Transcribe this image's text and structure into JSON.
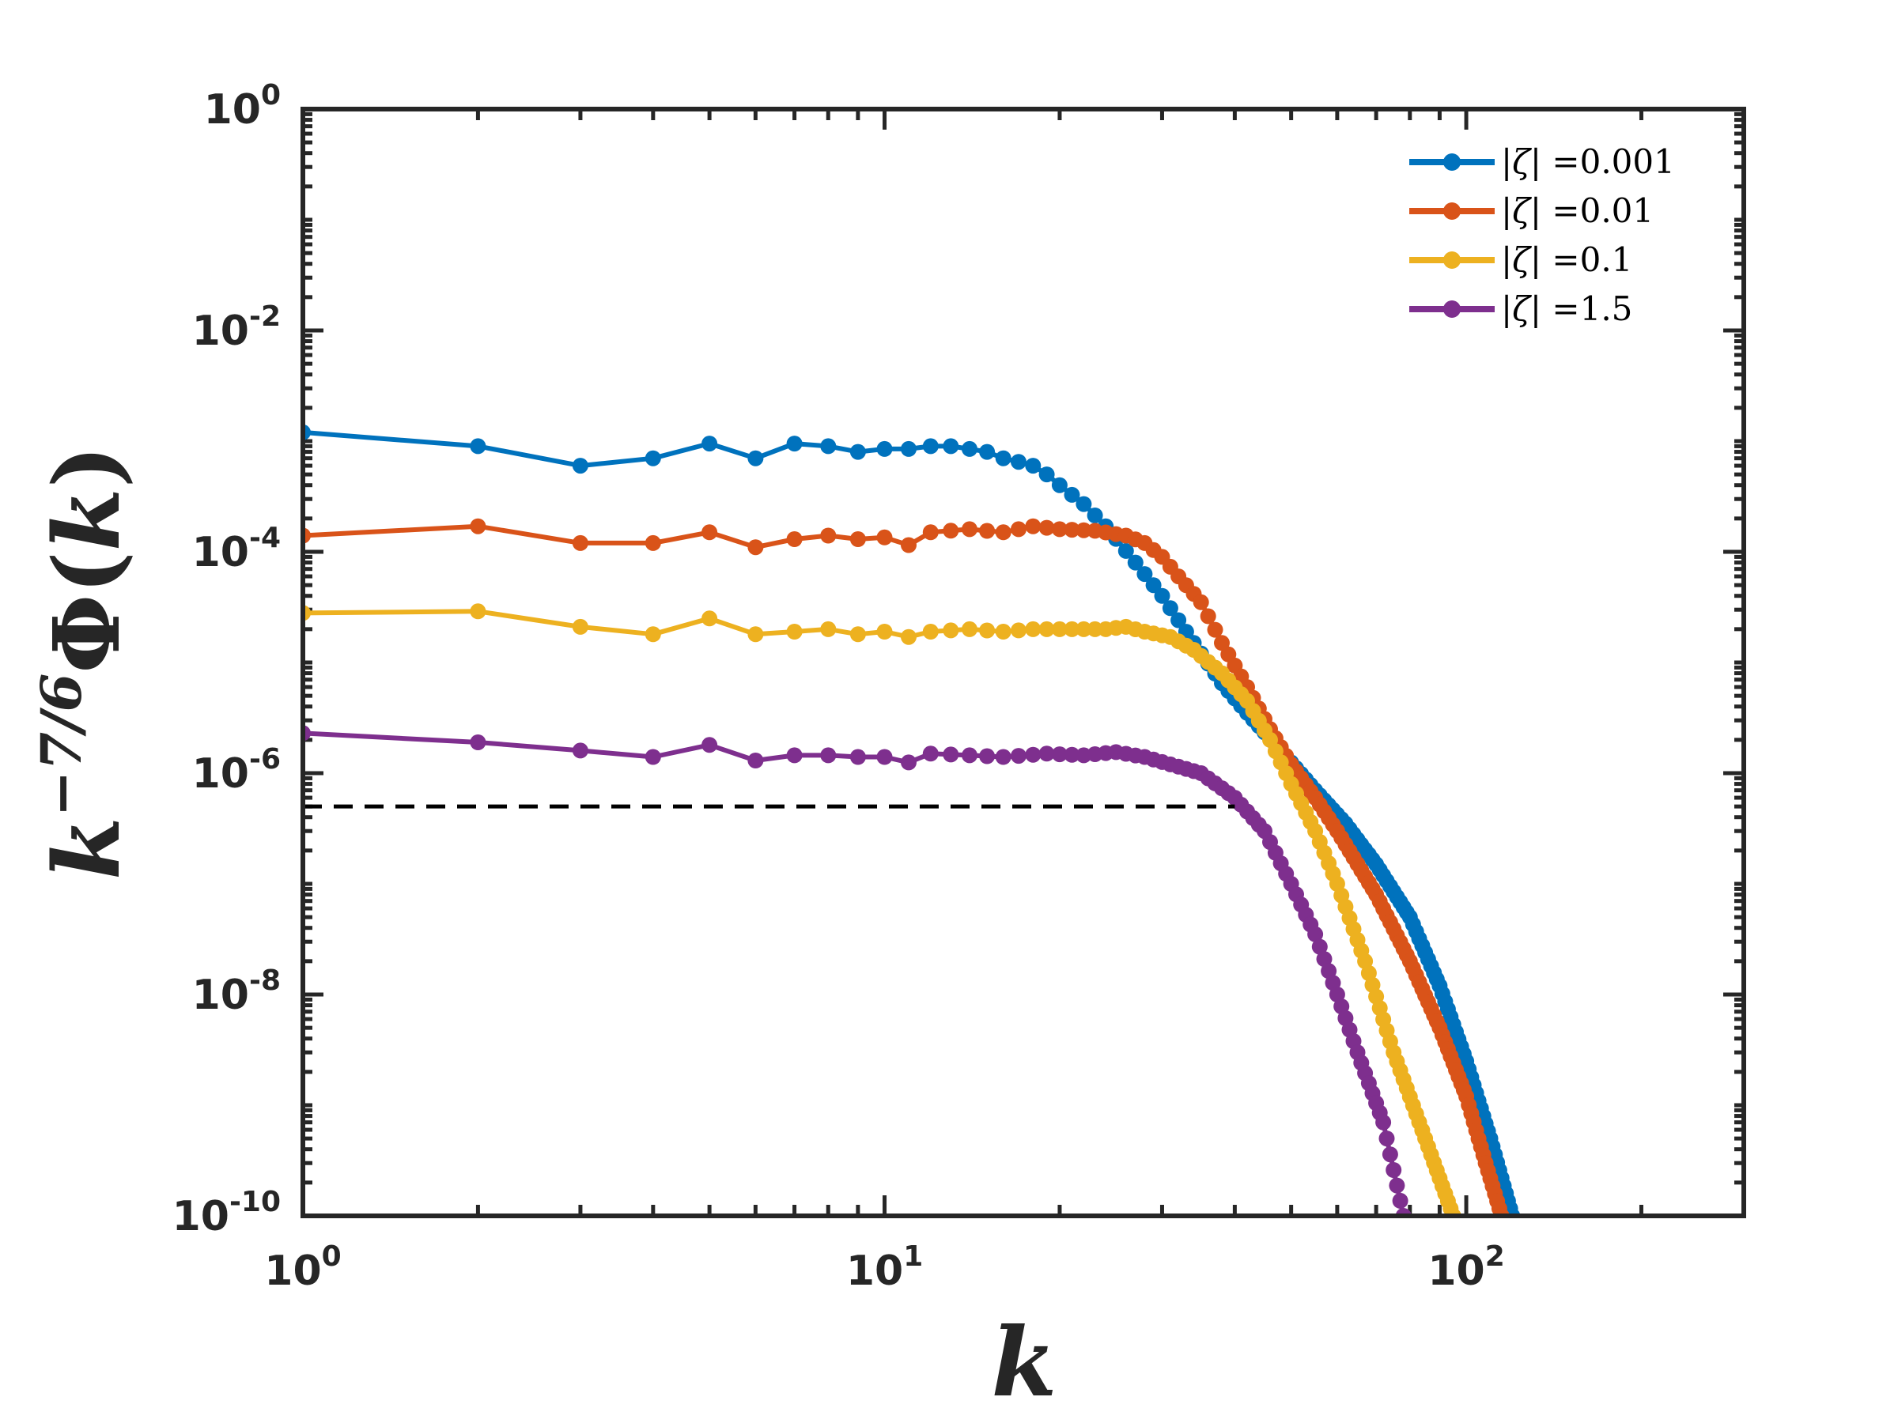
{
  "chart_data": {
    "type": "line",
    "title": "",
    "xlabel": "k",
    "ylabel": "k^{-7/6} Φ(k)",
    "ylabel_parts": {
      "base": "k",
      "exponent": "−7/6",
      "phi": "Φ",
      "paren_open": "(",
      "arg": "k",
      "paren_close": ")"
    },
    "xscale": "log",
    "yscale": "log",
    "xlim": [
      1,
      300
    ],
    "ylim": [
      1e-10,
      1
    ],
    "x_ticks": [
      {
        "value": 1,
        "base": "10",
        "exp": "0"
      },
      {
        "value": 10,
        "base": "10",
        "exp": "1"
      },
      {
        "value": 100,
        "base": "10",
        "exp": "2"
      }
    ],
    "y_ticks": [
      {
        "value": 1,
        "base": "10",
        "exp": "0"
      },
      {
        "value": 0.01,
        "base": "10",
        "exp": "-2"
      },
      {
        "value": 0.0001,
        "base": "10",
        "exp": "-4"
      },
      {
        "value": 1e-06,
        "base": "10",
        "exp": "-6"
      },
      {
        "value": 1e-08,
        "base": "10",
        "exp": "-8"
      },
      {
        "value": 1e-10,
        "base": "10",
        "exp": "-10"
      }
    ],
    "legend_position": "top-right",
    "reference_line": {
      "y": 5e-07,
      "x_range": [
        1,
        40
      ],
      "style": "dashed",
      "color": "#000000"
    },
    "series": [
      {
        "name": "|ζ| =0.001",
        "legend_symbol": "|ζ|",
        "legend_value": "=0.001",
        "color": "#0072BD",
        "anchors": [
          [
            1,
            0.0012
          ],
          [
            2,
            0.0009
          ],
          [
            3,
            0.0006
          ],
          [
            4,
            0.0007
          ],
          [
            5,
            0.00095
          ],
          [
            6,
            0.0007
          ],
          [
            7,
            0.00095
          ],
          [
            8,
            0.0009
          ],
          [
            9,
            0.0008
          ],
          [
            10,
            0.00085
          ],
          [
            11,
            0.00085
          ],
          [
            12,
            0.0009
          ],
          [
            13,
            0.0009
          ],
          [
            14,
            0.00085
          ],
          [
            15,
            0.0008
          ],
          [
            16,
            0.0007
          ],
          [
            17,
            0.00065
          ],
          [
            18,
            0.0006
          ],
          [
            19,
            0.0005
          ],
          [
            20,
            0.0004
          ],
          [
            22,
            0.00027
          ],
          [
            24,
            0.00017
          ],
          [
            27,
            8e-05
          ],
          [
            30,
            4e-05
          ],
          [
            34,
            1.5e-05
          ],
          [
            38,
            6.5e-06
          ],
          [
            42,
            3.5e-06
          ],
          [
            48,
            1.6e-06
          ],
          [
            55,
            7e-07
          ],
          [
            62,
            3.5e-07
          ],
          [
            70,
            1.5e-07
          ],
          [
            80,
            5e-08
          ],
          [
            90,
            1.2e-08
          ],
          [
            100,
            2.5e-09
          ],
          [
            110,
            5e-10
          ],
          [
            120,
            1e-10
          ]
        ]
      },
      {
        "name": "|ζ| =0.01",
        "legend_symbol": "|ζ|",
        "legend_value": "=0.01",
        "color": "#D95319",
        "anchors": [
          [
            1,
            0.00014
          ],
          [
            2,
            0.00017
          ],
          [
            3,
            0.00012
          ],
          [
            4,
            0.00012
          ],
          [
            5,
            0.00015
          ],
          [
            6,
            0.00011
          ],
          [
            7,
            0.00013
          ],
          [
            8,
            0.00014
          ],
          [
            9,
            0.00013
          ],
          [
            10,
            0.000135
          ],
          [
            11,
            0.000115
          ],
          [
            12,
            0.00015
          ],
          [
            14,
            0.00016
          ],
          [
            16,
            0.00015
          ],
          [
            18,
            0.00017
          ],
          [
            20,
            0.00016
          ],
          [
            23,
            0.000155
          ],
          [
            26,
            0.00014
          ],
          [
            28,
            0.00012
          ],
          [
            30,
            9e-05
          ],
          [
            32,
            6e-05
          ],
          [
            35,
            3.5e-05
          ],
          [
            38,
            1.5e-05
          ],
          [
            42,
            6e-06
          ],
          [
            46,
            2.5e-06
          ],
          [
            50,
            1.2e-06
          ],
          [
            55,
            6e-07
          ],
          [
            60,
            3e-07
          ],
          [
            70,
            8e-08
          ],
          [
            80,
            2e-08
          ],
          [
            90,
            5e-09
          ],
          [
            100,
            1.2e-09
          ],
          [
            108,
            3e-10
          ],
          [
            115,
            1e-10
          ]
        ]
      },
      {
        "name": "|ζ| =0.1",
        "legend_symbol": "|ζ|",
        "legend_value": "=0.1",
        "color": "#EDB120",
        "anchors": [
          [
            1,
            2.8e-05
          ],
          [
            2,
            2.9e-05
          ],
          [
            3,
            2.1e-05
          ],
          [
            4,
            1.8e-05
          ],
          [
            5,
            2.5e-05
          ],
          [
            6,
            1.8e-05
          ],
          [
            7,
            1.9e-05
          ],
          [
            8,
            2e-05
          ],
          [
            9,
            1.8e-05
          ],
          [
            10,
            1.9e-05
          ],
          [
            11,
            1.7e-05
          ],
          [
            12,
            1.9e-05
          ],
          [
            14,
            2e-05
          ],
          [
            16,
            1.9e-05
          ],
          [
            18,
            2e-05
          ],
          [
            21,
            2e-05
          ],
          [
            24,
            2e-05
          ],
          [
            26,
            2.1e-05
          ],
          [
            28,
            1.9e-05
          ],
          [
            31,
            1.7e-05
          ],
          [
            34,
            1.3e-05
          ],
          [
            38,
            8e-06
          ],
          [
            42,
            4.5e-06
          ],
          [
            46,
            2e-06
          ],
          [
            50,
            8e-07
          ],
          [
            55,
            3e-07
          ],
          [
            60,
            1e-07
          ],
          [
            67,
            2e-08
          ],
          [
            75,
            3e-09
          ],
          [
            85,
            5e-10
          ],
          [
            95,
            1e-10
          ]
        ]
      },
      {
        "name": "|ζ| =1.5",
        "legend_symbol": "|ζ|",
        "legend_value": "=1.5",
        "color": "#7E2F8E",
        "anchors": [
          [
            1,
            2.3e-06
          ],
          [
            2,
            1.9e-06
          ],
          [
            3,
            1.6e-06
          ],
          [
            4,
            1.4e-06
          ],
          [
            5,
            1.8e-06
          ],
          [
            6,
            1.3e-06
          ],
          [
            7,
            1.45e-06
          ],
          [
            8,
            1.45e-06
          ],
          [
            9,
            1.4e-06
          ],
          [
            10,
            1.4e-06
          ],
          [
            11,
            1.25e-06
          ],
          [
            12,
            1.5e-06
          ],
          [
            14,
            1.45e-06
          ],
          [
            16,
            1.4e-06
          ],
          [
            19,
            1.5e-06
          ],
          [
            22,
            1.45e-06
          ],
          [
            25,
            1.55e-06
          ],
          [
            28,
            1.4e-06
          ],
          [
            31,
            1.2e-06
          ],
          [
            35,
            1e-06
          ],
          [
            40,
            6e-07
          ],
          [
            45,
            3e-07
          ],
          [
            50,
            1e-07
          ],
          [
            55,
            3.5e-08
          ],
          [
            60,
            1e-08
          ],
          [
            65,
            3e-09
          ],
          [
            72,
            7e-10
          ],
          [
            78,
            1e-10
          ]
        ]
      }
    ]
  }
}
